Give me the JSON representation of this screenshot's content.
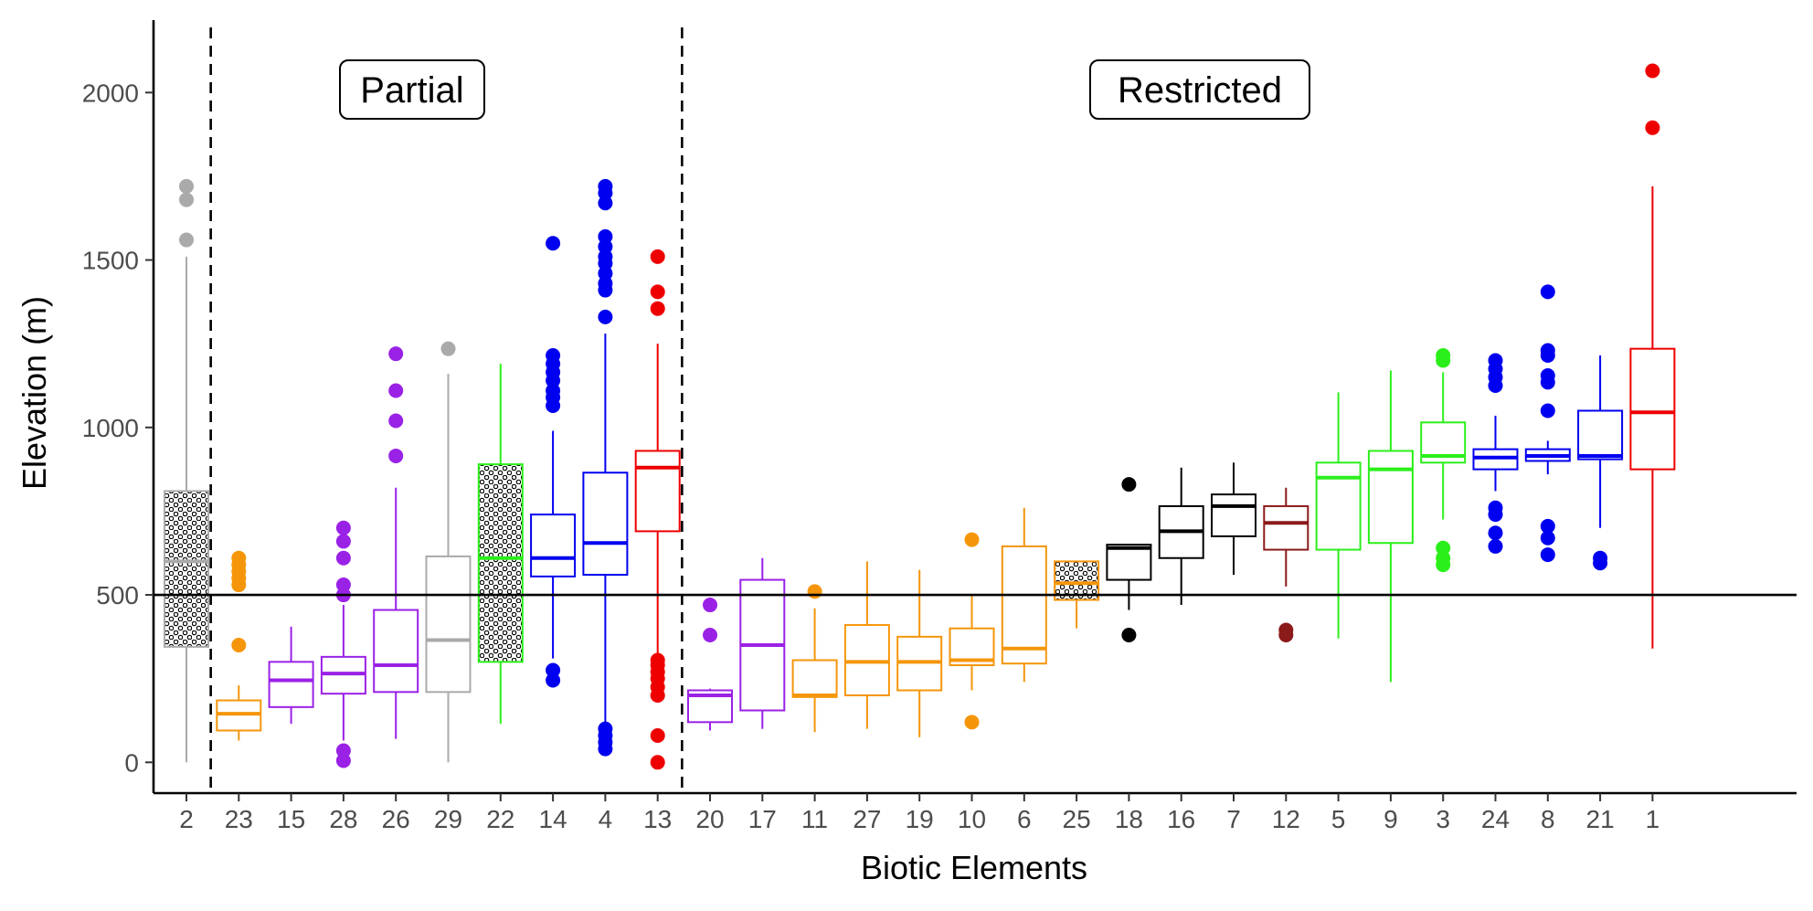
{
  "chart_data": {
    "type": "boxplot",
    "xlabel": "Biotic Elements",
    "ylabel": "Elevation (m)",
    "ylim": [
      -100,
      2200
    ],
    "yticks": [
      0,
      500,
      1000,
      1500,
      2000
    ],
    "reference_line": 500,
    "grid": false,
    "region_labels": [
      "Partial",
      "Restricted"
    ],
    "region_dividers_after": [
      "2",
      "13"
    ],
    "colors": {
      "grey": "#aaaaaa",
      "orange": "#f5960a",
      "purple": "#9a21e6",
      "green": "#2bef1a",
      "blue": "#0000f0",
      "red": "#ee0000",
      "black": "#000000",
      "darkred": "#8b1a1a"
    },
    "categories": [
      "2",
      "23",
      "15",
      "28",
      "26",
      "29",
      "22",
      "14",
      "4",
      "13",
      "20",
      "17",
      "11",
      "27",
      "19",
      "10",
      "6",
      "25",
      "18",
      "16",
      "7",
      "12",
      "5",
      "9",
      "3",
      "24",
      "8",
      "21",
      "1"
    ],
    "boxes": [
      {
        "category": "2",
        "color": "grey",
        "patterned": true,
        "min": 0,
        "q1": 345,
        "median": 600,
        "q3": 810,
        "max": 1510,
        "outliers": [
          1560,
          1680,
          1720
        ]
      },
      {
        "category": "23",
        "color": "orange",
        "patterned": false,
        "min": 65,
        "q1": 95,
        "median": 145,
        "q3": 185,
        "max": 230,
        "outliers": [
          350,
          530,
          550,
          570,
          590,
          610
        ]
      },
      {
        "category": "15",
        "color": "purple",
        "patterned": false,
        "min": 115,
        "q1": 165,
        "median": 245,
        "q3": 300,
        "max": 405,
        "outliers": []
      },
      {
        "category": "28",
        "color": "purple",
        "patterned": false,
        "min": 65,
        "q1": 205,
        "median": 265,
        "q3": 315,
        "max": 470,
        "outliers": [
          5,
          35,
          500,
          530,
          610,
          660,
          700
        ]
      },
      {
        "category": "26",
        "color": "purple",
        "patterned": false,
        "min": 70,
        "q1": 210,
        "median": 290,
        "q3": 455,
        "max": 820,
        "outliers": [
          915,
          1020,
          1110,
          1220
        ]
      },
      {
        "category": "29",
        "color": "grey",
        "patterned": false,
        "min": 0,
        "q1": 210,
        "median": 365,
        "q3": 615,
        "max": 1160,
        "outliers": [
          1235
        ]
      },
      {
        "category": "22",
        "color": "green",
        "patterned": true,
        "min": 115,
        "q1": 300,
        "median": 610,
        "q3": 890,
        "max": 1190,
        "outliers": []
      },
      {
        "category": "14",
        "color": "blue",
        "patterned": false,
        "min": 310,
        "q1": 555,
        "median": 610,
        "q3": 740,
        "max": 990,
        "outliers": [
          245,
          275,
          1065,
          1090,
          1110,
          1140,
          1165,
          1190,
          1215,
          1550
        ]
      },
      {
        "category": "4",
        "color": "blue",
        "patterned": false,
        "min": 120,
        "q1": 560,
        "median": 655,
        "q3": 865,
        "max": 1280,
        "outliers": [
          40,
          60,
          80,
          100,
          1330,
          1410,
          1430,
          1460,
          1490,
          1510,
          1540,
          1570,
          1670,
          1700,
          1720
        ]
      },
      {
        "category": "13",
        "color": "red",
        "patterned": false,
        "min": 320,
        "q1": 690,
        "median": 880,
        "q3": 930,
        "max": 1250,
        "outliers": [
          0,
          80,
          200,
          225,
          250,
          270,
          290,
          305,
          1355,
          1405,
          1510
        ]
      },
      {
        "category": "20",
        "color": "purple",
        "patterned": false,
        "min": 95,
        "q1": 120,
        "median": 200,
        "q3": 215,
        "max": 220,
        "outliers": [
          380,
          470
        ]
      },
      {
        "category": "17",
        "color": "purple",
        "patterned": false,
        "min": 100,
        "q1": 155,
        "median": 350,
        "q3": 545,
        "max": 610,
        "outliers": []
      },
      {
        "category": "11",
        "color": "orange",
        "patterned": false,
        "min": 90,
        "q1": 195,
        "median": 200,
        "q3": 305,
        "max": 460,
        "outliers": [
          510
        ]
      },
      {
        "category": "27",
        "color": "orange",
        "patterned": false,
        "min": 100,
        "q1": 200,
        "median": 300,
        "q3": 410,
        "max": 600,
        "outliers": []
      },
      {
        "category": "19",
        "color": "orange",
        "patterned": false,
        "min": 75,
        "q1": 215,
        "median": 300,
        "q3": 375,
        "max": 575,
        "outliers": []
      },
      {
        "category": "10",
        "color": "orange",
        "patterned": false,
        "min": 215,
        "q1": 290,
        "median": 305,
        "q3": 400,
        "max": 500,
        "outliers": [
          120,
          665
        ]
      },
      {
        "category": "6",
        "color": "orange",
        "patterned": false,
        "min": 240,
        "q1": 295,
        "median": 340,
        "q3": 645,
        "max": 760,
        "outliers": []
      },
      {
        "category": "25",
        "color": "orange",
        "patterned": true,
        "min": 400,
        "q1": 485,
        "median": 535,
        "q3": 600,
        "max": 600,
        "outliers": []
      },
      {
        "category": "18",
        "color": "black",
        "patterned": false,
        "min": 455,
        "q1": 545,
        "median": 640,
        "q3": 650,
        "max": 650,
        "outliers": [
          380,
          830
        ]
      },
      {
        "category": "16",
        "color": "black",
        "patterned": false,
        "min": 470,
        "q1": 610,
        "median": 690,
        "q3": 765,
        "max": 880,
        "outliers": []
      },
      {
        "category": "7",
        "color": "black",
        "patterned": false,
        "min": 560,
        "q1": 675,
        "median": 765,
        "q3": 800,
        "max": 895,
        "outliers": []
      },
      {
        "category": "12",
        "color": "darkred",
        "patterned": false,
        "min": 525,
        "q1": 635,
        "median": 715,
        "q3": 765,
        "max": 820,
        "outliers": [
          380,
          395
        ]
      },
      {
        "category": "5",
        "color": "green",
        "patterned": false,
        "min": 370,
        "q1": 635,
        "median": 850,
        "q3": 895,
        "max": 1105,
        "outliers": []
      },
      {
        "category": "9",
        "color": "green",
        "patterned": false,
        "min": 240,
        "q1": 655,
        "median": 875,
        "q3": 930,
        "max": 1170,
        "outliers": []
      },
      {
        "category": "3",
        "color": "green",
        "patterned": false,
        "min": 725,
        "q1": 895,
        "median": 915,
        "q3": 1015,
        "max": 1165,
        "outliers": [
          590,
          610,
          640,
          1200,
          1215
        ]
      },
      {
        "category": "24",
        "color": "blue",
        "patterned": false,
        "min": 810,
        "q1": 875,
        "median": 910,
        "q3": 935,
        "max": 1035,
        "outliers": [
          645,
          685,
          740,
          760,
          1125,
          1150,
          1175,
          1200
        ]
      },
      {
        "category": "8",
        "color": "blue",
        "patterned": false,
        "min": 860,
        "q1": 900,
        "median": 915,
        "q3": 935,
        "max": 960,
        "outliers": [
          620,
          670,
          705,
          1050,
          1135,
          1155,
          1215,
          1230,
          1405
        ]
      },
      {
        "category": "21",
        "color": "blue",
        "patterned": false,
        "min": 700,
        "q1": 905,
        "median": 915,
        "q3": 1050,
        "max": 1215,
        "outliers": [
          595,
          610
        ]
      },
      {
        "category": "1",
        "color": "red",
        "patterned": false,
        "min": 340,
        "q1": 875,
        "median": 1045,
        "q3": 1235,
        "max": 1720,
        "outliers": [
          1895,
          2065
        ]
      }
    ]
  }
}
